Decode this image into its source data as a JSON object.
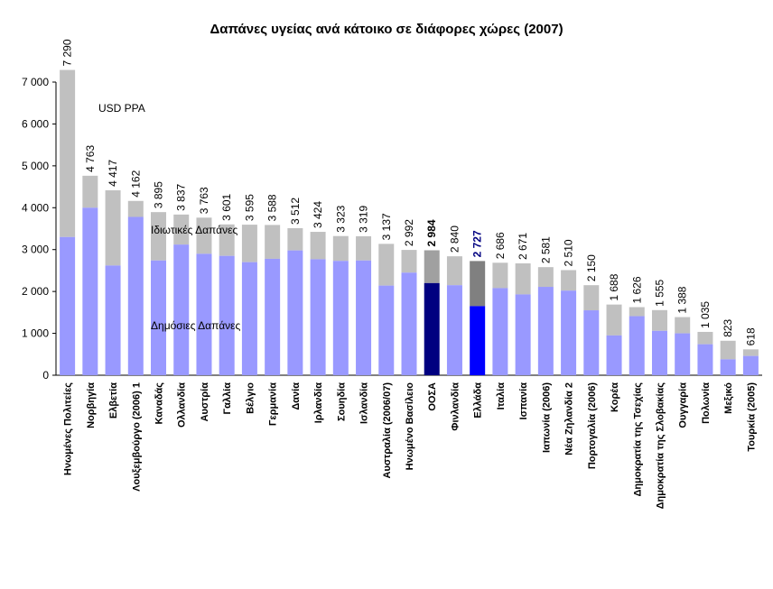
{
  "chart_data": {
    "type": "bar",
    "stacked": true,
    "title": "Δαπάνες υγείας ανά κάτοικο σε διάφορες χώρες (2007)",
    "unit_label": "USD PPA",
    "ylim": [
      0,
      7000
    ],
    "yticks": [
      0,
      1000,
      2000,
      3000,
      4000,
      5000,
      6000,
      7000
    ],
    "ytick_labels": [
      "0",
      "1 000",
      "2 000",
      "3 000",
      "4 000",
      "5 000",
      "6 000",
      "7 000"
    ],
    "grid": false,
    "series": [
      {
        "name": "Δημόσιες Δαπάνες",
        "color": "#9999ff"
      },
      {
        "name": "Ιδιωτικές Δαπάνες",
        "color": "#c0c0c0"
      }
    ],
    "highlight_colors": {
      "OOSA": {
        "public": "#000080",
        "private": "#a0a0a0"
      },
      "Greece": {
        "public": "#0000ff",
        "private": "#808080",
        "label": "#000080"
      }
    },
    "categories": [
      "Ηνωμένες Πολιτείες",
      "Νορβηγία",
      "Ελβετία",
      "Λουξεμβούργο (2006) 1",
      "Καναδάς",
      "Ολλανδία",
      "Αυστρία",
      "Γαλλία",
      "Βέλγιο",
      "Γερμανία",
      "Δανία",
      "Ιρλανδία",
      "Σουηδία",
      "Ισλανδία",
      "Αυστραλία (2006/07)",
      "Ηνωμένο Βασίλειο",
      "ΟΟΣΑ",
      "Φινλανδία",
      "Ελλάδα",
      "Ιταλία",
      "Ισπανία",
      "Ιαπωνία (2006)",
      "Νέα Ζηλανδία 2",
      "Πορτογαλία (2006)",
      "Κορέα",
      "Δημοκρατία της Τσεχίας",
      "Δημοκρατία της Σλοβακίας",
      "Ουγγαρία",
      "Πολωνία",
      "Μεξικό",
      "Τουρκία (2005)"
    ],
    "totals": [
      7290,
      4763,
      4417,
      4162,
      3895,
      3837,
      3763,
      3601,
      3595,
      3588,
      3512,
      3424,
      3323,
      3319,
      3137,
      2992,
      2984,
      2840,
      2727,
      2686,
      2671,
      2581,
      2510,
      2150,
      1688,
      1626,
      1555,
      1388,
      1035,
      823,
      618
    ],
    "total_labels": [
      "7 290",
      "4 763",
      "4 417",
      "4 162",
      "3 895",
      "3 837",
      "3 763",
      "3 601",
      "3 595",
      "3 588",
      "3 512",
      "3 424",
      "3 323",
      "3 319",
      "3 137",
      "2 992",
      "2 984",
      "2 840",
      "2 727",
      "2 686",
      "2 671",
      "2 581",
      "2 510",
      "2 150",
      "1 688",
      "1 626",
      "1 555",
      "1 388",
      "1 035",
      "823",
      "618"
    ],
    "public_values": [
      3300,
      4000,
      2620,
      3780,
      2740,
      3120,
      2900,
      2850,
      2700,
      2780,
      2980,
      2770,
      2730,
      2740,
      2140,
      2450,
      2200,
      2150,
      1650,
      2080,
      1930,
      2110,
      2020,
      1550,
      950,
      1410,
      1060,
      1000,
      740,
      380,
      460
    ],
    "bold_label_indices": [
      16,
      18
    ],
    "annotations": {
      "private_label": "Ιδιωτικές Δαπάνες",
      "public_label": "Δημόσιες Δαπάνες"
    }
  }
}
